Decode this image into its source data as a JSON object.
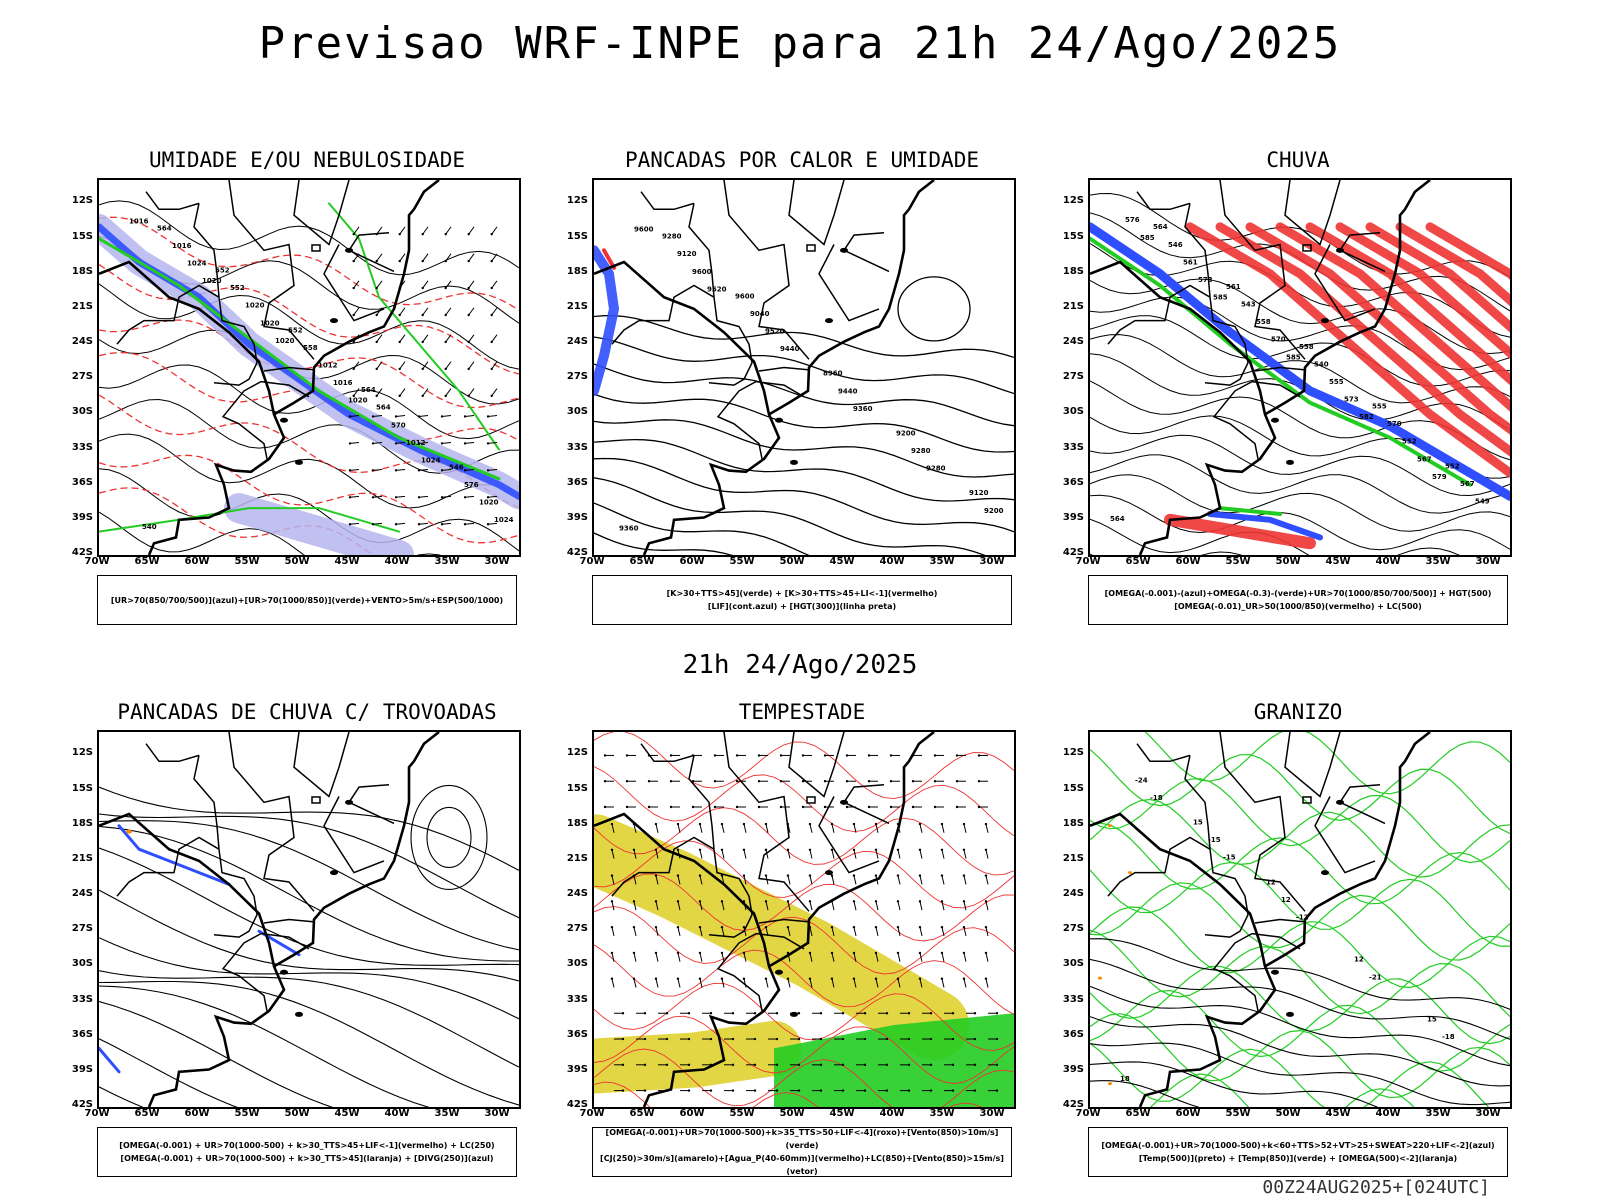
{
  "title": "Previsao WRF-INPE  para 21h 24/Ago/2025",
  "subtitle": "21h 24/Ago/2025",
  "footer": "00Z24AUG2025+[024UTC]",
  "axes": {
    "lat_labels": [
      "12S",
      "15S",
      "18S",
      "21S",
      "24S",
      "27S",
      "30S",
      "33S",
      "36S",
      "39S",
      "42S"
    ],
    "lon_labels": [
      "70W",
      "65W",
      "60W",
      "55W",
      "50W",
      "45W",
      "40W",
      "35W",
      "30W"
    ]
  },
  "colors": {
    "blue": "#2f4fff",
    "green": "#22cc22",
    "red": "#ee3333",
    "yellow": "#e0d230",
    "lavender": "#b5b5ee",
    "orange": "#ff8800"
  },
  "panels": [
    {
      "title": "UMIDADE E/OU NEBULOSIDADE",
      "legend": [
        "[UR>70(850/700/500)](azul)+[UR>70(1000/850)](verde)+VENTO>5m/s+ESP(500/1000)"
      ],
      "labels": [
        "1016",
        "1020",
        "1020",
        "1020",
        "1024",
        "1024",
        "1024",
        "1020",
        "1016",
        "1012",
        "1020",
        "1016",
        "1020",
        "1012",
        "570",
        "576",
        "564",
        "552",
        "558",
        "564",
        "546",
        "540",
        "552",
        "552",
        "564"
      ]
    },
    {
      "title": "PANCADAS POR CALOR E UMIDADE",
      "legend": [
        "[K>30+TTS>45](verde) + [K>30+TTS>45+LI<-1](vermelho)",
        "[LIF](cont.azul) + [HGT(300)](linha preta)"
      ],
      "labels": [
        "9600",
        "9520",
        "9440",
        "9360",
        "9280",
        "9360",
        "9600",
        "9520",
        "9440",
        "9280",
        "9200",
        "9120",
        "9040",
        "8960",
        "9200",
        "9120",
        "9280",
        "9600"
      ]
    },
    {
      "title": "CHUVA",
      "legend": [
        "[OMEGA(-0.001)-(azul)+OMEGA(-0.3)-(verde)+UR>70(1000/850/700/500)] + HGT(500)",
        "[OMEGA(-0.01)_UR>50(1000/850)(vermelho) + LC(500)"
      ],
      "labels": [
        "585",
        "585",
        "585",
        "582",
        "579",
        "576",
        "573",
        "570",
        "573",
        "567",
        "564",
        "561",
        "558",
        "555",
        "552",
        "549",
        "546",
        "543",
        "540",
        "570",
        "567",
        "564",
        "561",
        "558",
        "555",
        "552"
      ]
    },
    {
      "title": "PANCADAS DE CHUVA C/ TROVOADAS",
      "legend": [
        "[OMEGA(-0.001) + UR>70(1000-500) + k>30_TTS>45+LIF<-1](vermelho) + LC(250)",
        "[OMEGA(-0.001) + UR>70(1000-500) + k>30_TTS>45](laranja) + [DIVG(250)](azul)"
      ],
      "labels": []
    },
    {
      "title": "TEMPESTADE",
      "legend": [
        "[OMEGA(-0.001)+UR>70(1000-500)+k>35_TTS>50+LIF<-4](roxo)+[Vento(850)>10m/s](verde)",
        "[CJ(250)>30m/s](amarelo)+[Agua_P(40-60mm)](vermelho)+LC(850)+[Vento(850)>15m/s](vetor)"
      ],
      "labels": []
    },
    {
      "title": "GRANIZO",
      "legend": [
        "[OMEGA(-0.001)+UR>70(1000-500)+k<60+TTS>52+VT>25+SWEAT>220+LIF<-2](azul)",
        "[Temp(500)](preto) + [Temp(850)](verde) + [OMEGA(500)<-2](laranja)"
      ],
      "labels": [
        "-18",
        "-15",
        "-12",
        "-21",
        "-18",
        "-24",
        "-15",
        "12",
        "12",
        "15",
        "18",
        "15",
        "12"
      ]
    }
  ]
}
